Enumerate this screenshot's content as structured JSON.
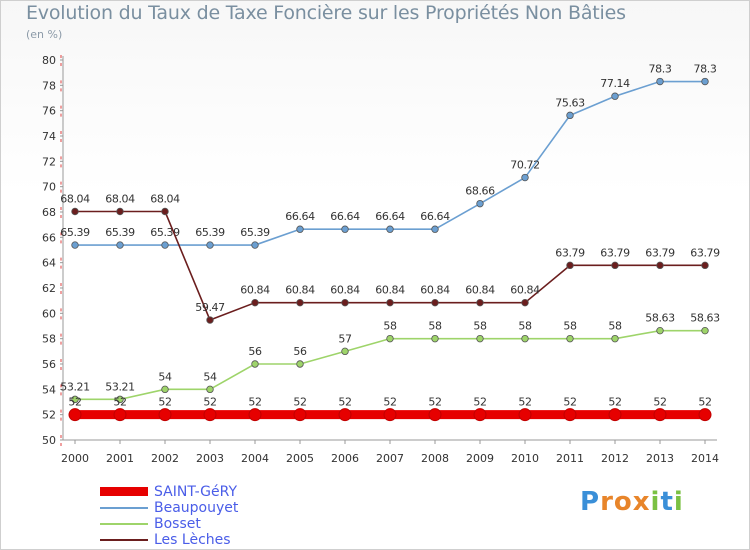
{
  "header": {
    "title": "Evolution du Taux de Taxe Foncière sur les Propriétés Non Bâties",
    "unit": "(en %)"
  },
  "chart_data": {
    "type": "line",
    "title": "Evolution du Taux de Taxe Foncière sur les Propriétés Non Bâties",
    "ylabel": "(en %)",
    "xlabel": "",
    "ylim": [
      50,
      80
    ],
    "ytick_step": 2,
    "grid": "none",
    "categories": [
      "2000",
      "2001",
      "2002",
      "2003",
      "2004",
      "2005",
      "2006",
      "2007",
      "2008",
      "2009",
      "2010",
      "2011",
      "2012",
      "2013",
      "2014"
    ],
    "series": [
      {
        "name": "Beaupouyet",
        "color": "#6b9fd1",
        "values": [
          65.39,
          65.39,
          65.39,
          65.39,
          65.39,
          66.64,
          66.64,
          66.64,
          66.64,
          68.66,
          70.72,
          75.63,
          77.14,
          78.3,
          78.3
        ],
        "labels": [
          "65.39",
          "65.39",
          "65.39",
          "65.39",
          "65.39",
          "66.64",
          "66.64",
          "66.64",
          "66.64",
          "68.66",
          "70.72",
          "75.63",
          "77.14",
          "78.3",
          "78.3"
        ]
      },
      {
        "name": "Les Lèches",
        "color": "#6b1e1e",
        "values": [
          68.04,
          68.04,
          68.04,
          59.47,
          60.84,
          60.84,
          60.84,
          60.84,
          60.84,
          60.84,
          60.84,
          63.79,
          63.79,
          63.79,
          63.79
        ],
        "labels": [
          "68.04",
          "68.04",
          "68.04",
          "59.47",
          "60.84",
          "60.84",
          "60.84",
          "60.84",
          "60.84",
          "60.84",
          "60.84",
          "63.79",
          "63.79",
          "63.79",
          "63.79"
        ]
      },
      {
        "name": "Bosset",
        "color": "#9ed46a",
        "values": [
          53.21,
          53.21,
          54,
          54,
          56,
          56,
          57,
          58,
          58,
          58,
          58,
          58,
          58,
          58.63,
          58.63
        ],
        "labels": [
          "53.21",
          "53.21",
          "54",
          "54",
          "56",
          "56",
          "57",
          "58",
          "58",
          "58",
          "58",
          "58",
          "58",
          "58.63",
          "58.63"
        ]
      },
      {
        "name": "SAINT-GéRY",
        "color": "#e60000",
        "values": [
          52,
          52,
          52,
          52,
          52,
          52,
          52,
          52,
          52,
          52,
          52,
          52,
          52,
          52,
          52
        ],
        "labels": [
          "52",
          "52",
          "52",
          "52",
          "52",
          "52",
          "52",
          "52",
          "52",
          "52",
          "52",
          "52",
          "52",
          "52",
          "52"
        ]
      }
    ],
    "legend": {
      "placement": "bottom-left",
      "entries": [
        "SAINT-GéRY",
        "Beaupouyet",
        "Bosset",
        "Les Lèches"
      ]
    }
  },
  "legend_items": [
    {
      "label": "SAINT-GéRY",
      "color": "#e60000"
    },
    {
      "label": "Beaupouyet",
      "color": "#6b9fd1"
    },
    {
      "label": "Bosset",
      "color": "#9ed46a"
    },
    {
      "label": "Les Lèches",
      "color": "#6b1e1e"
    }
  ],
  "logo": {
    "letters": [
      "P",
      "r",
      "o",
      "x",
      "i",
      "t",
      "i"
    ],
    "colors": [
      "#3a8fd8",
      "#e8852a",
      "#e8852a",
      "#e8852a",
      "#7ac143",
      "#3a8fd8",
      "#7ac143"
    ]
  }
}
